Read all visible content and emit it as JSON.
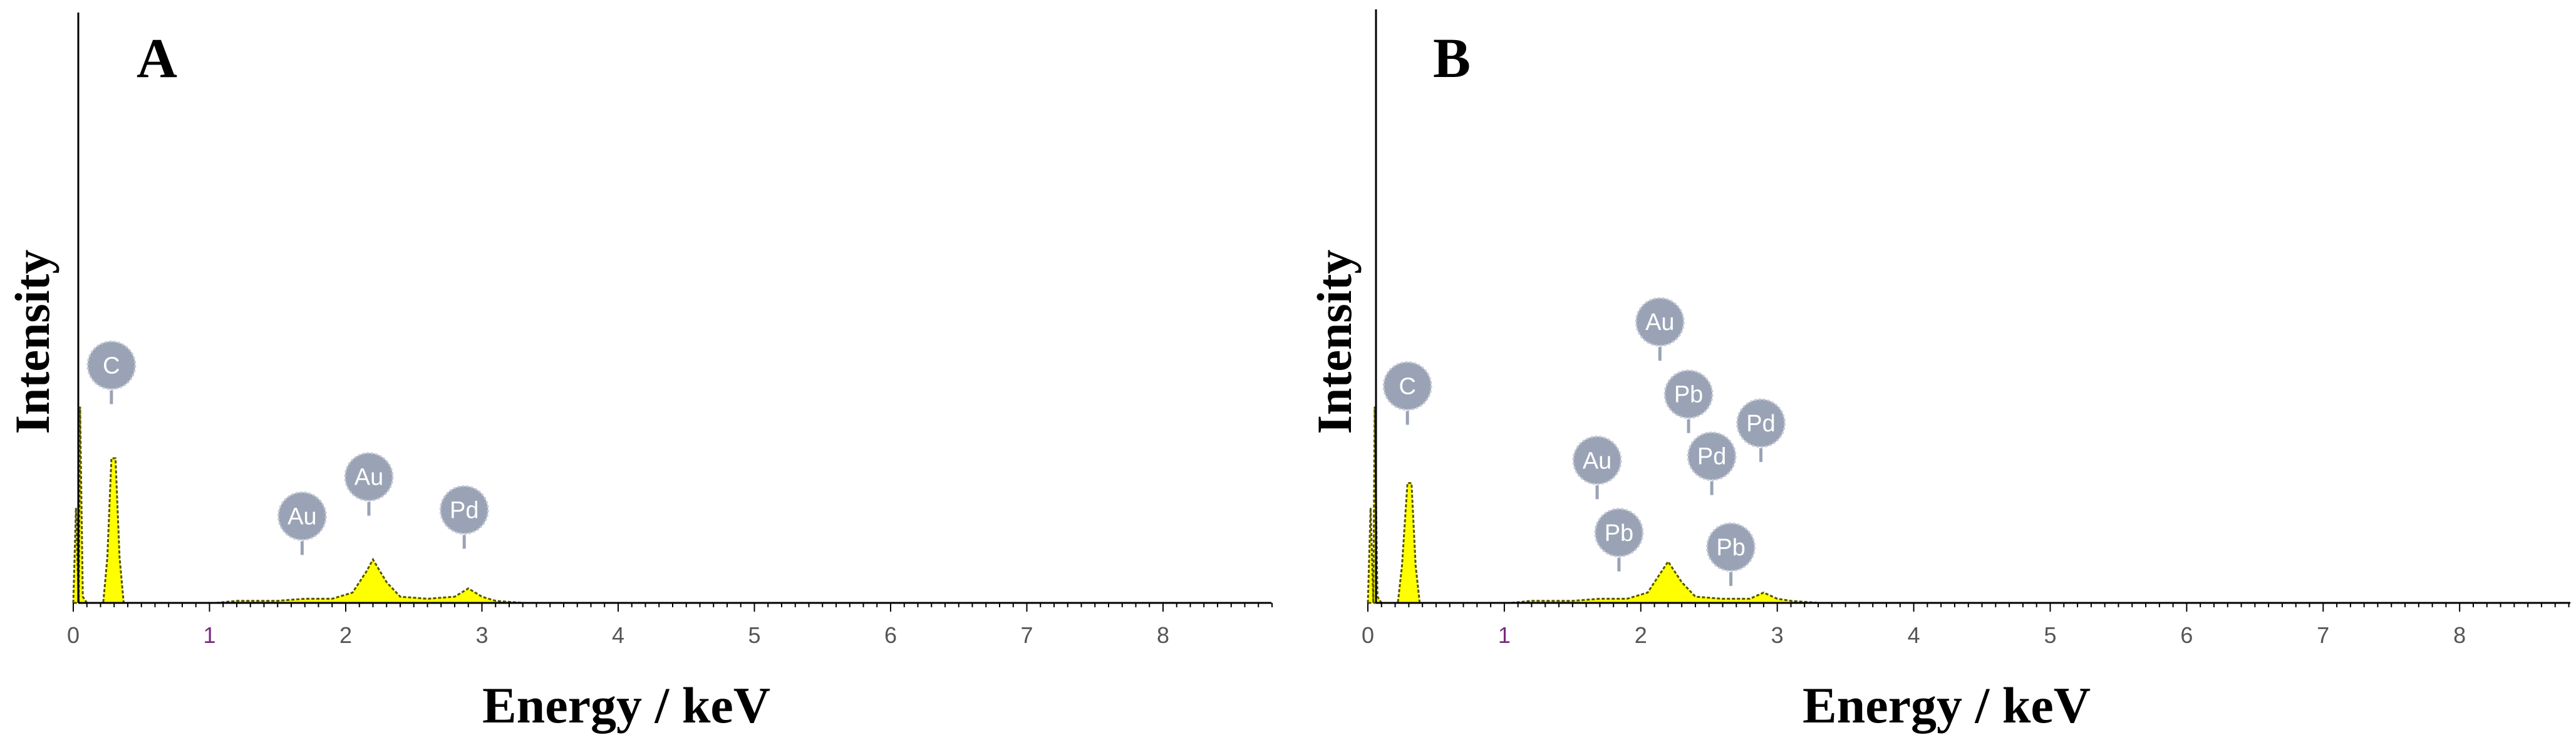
{
  "chart_data": [
    {
      "panel": "A",
      "type": "area",
      "xlabel": "Energy / keV",
      "ylabel": "Intensity",
      "xlim": [
        0,
        8.8
      ],
      "ylim": [
        0,
        100
      ],
      "x_ticks": [
        "0",
        "1",
        "2",
        "3",
        "4",
        "5",
        "6",
        "7",
        "8"
      ],
      "spectrum": [
        [
          0.0,
          0
        ],
        [
          0.02,
          46
        ],
        [
          0.04,
          0
        ],
        [
          0.05,
          95
        ],
        [
          0.07,
          3
        ],
        [
          0.1,
          0
        ],
        [
          0.22,
          0
        ],
        [
          0.25,
          22
        ],
        [
          0.28,
          70
        ],
        [
          0.31,
          70
        ],
        [
          0.34,
          22
        ],
        [
          0.37,
          0
        ],
        [
          1.05,
          0
        ],
        [
          1.2,
          1
        ],
        [
          1.5,
          1
        ],
        [
          1.7,
          2
        ],
        [
          1.9,
          2
        ],
        [
          2.05,
          5
        ],
        [
          2.15,
          15
        ],
        [
          2.2,
          21
        ],
        [
          2.3,
          10
        ],
        [
          2.4,
          3
        ],
        [
          2.6,
          2
        ],
        [
          2.8,
          3
        ],
        [
          2.9,
          7
        ],
        [
          3.0,
          3
        ],
        [
          3.1,
          1
        ],
        [
          3.3,
          0
        ]
      ],
      "peak_labels": [
        {
          "label": "C",
          "energy": 0.28,
          "tag_y": 115
        },
        {
          "label": "Au",
          "energy": 1.68,
          "tag_y": 42
        },
        {
          "label": "Au",
          "energy": 2.17,
          "tag_y": 61
        },
        {
          "label": "Pd",
          "energy": 2.87,
          "tag_y": 45
        }
      ]
    },
    {
      "panel": "B",
      "type": "area",
      "xlabel": "Energy / keV",
      "ylabel": "Intensity",
      "xlim": [
        0,
        8.8
      ],
      "ylim": [
        0,
        100
      ],
      "x_ticks": [
        "0",
        "1",
        "2",
        "3",
        "4",
        "5",
        "6",
        "7",
        "8"
      ],
      "spectrum": [
        [
          0.0,
          0
        ],
        [
          0.02,
          46
        ],
        [
          0.04,
          0
        ],
        [
          0.05,
          95
        ],
        [
          0.07,
          3
        ],
        [
          0.1,
          0
        ],
        [
          0.22,
          0
        ],
        [
          0.25,
          18
        ],
        [
          0.29,
          58
        ],
        [
          0.32,
          58
        ],
        [
          0.35,
          18
        ],
        [
          0.38,
          0
        ],
        [
          1.05,
          0
        ],
        [
          1.2,
          1
        ],
        [
          1.5,
          1
        ],
        [
          1.7,
          2
        ],
        [
          1.9,
          2
        ],
        [
          2.05,
          5
        ],
        [
          2.15,
          15
        ],
        [
          2.2,
          20
        ],
        [
          2.3,
          10
        ],
        [
          2.4,
          3
        ],
        [
          2.6,
          2
        ],
        [
          2.8,
          2
        ],
        [
          2.9,
          5
        ],
        [
          3.0,
          2
        ],
        [
          3.1,
          1
        ],
        [
          3.3,
          0
        ]
      ],
      "peak_labels": [
        {
          "label": "C",
          "energy": 0.29,
          "tag_y": 105
        },
        {
          "label": "Au",
          "energy": 2.14,
          "tag_y": 136
        },
        {
          "label": "Pb",
          "energy": 2.35,
          "tag_y": 101
        },
        {
          "label": "Pd",
          "energy": 2.88,
          "tag_y": 87
        },
        {
          "label": "Au",
          "energy": 1.68,
          "tag_y": 69
        },
        {
          "label": "Pd",
          "energy": 2.52,
          "tag_y": 71
        },
        {
          "label": "Pb",
          "energy": 1.84,
          "tag_y": 34
        },
        {
          "label": "Pb",
          "energy": 2.66,
          "tag_y": 27
        }
      ]
    }
  ],
  "colors": {
    "fill": "#ffff00",
    "outline": "#555500",
    "axis": "#000000",
    "marker": "#9aa3b5"
  }
}
